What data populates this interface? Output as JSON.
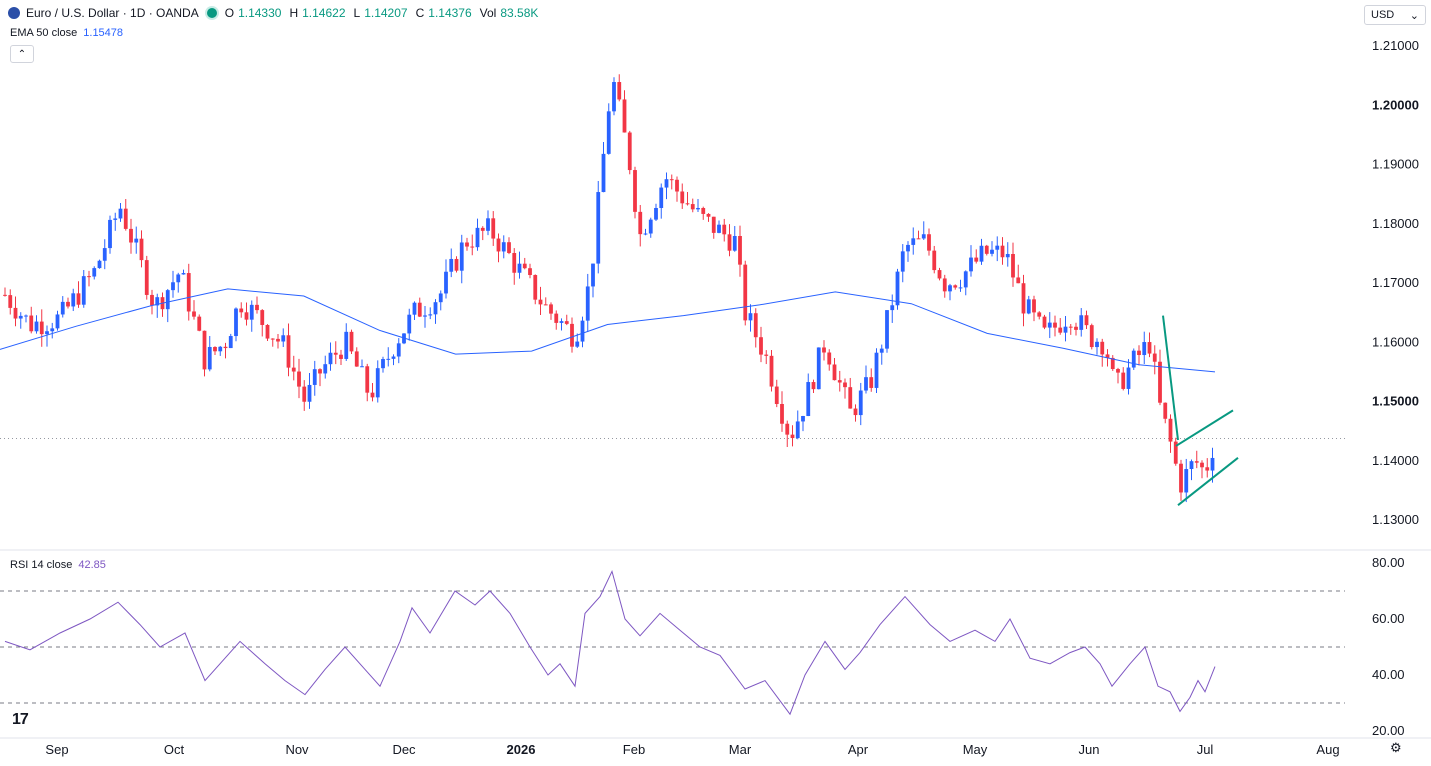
{
  "header": {
    "symbol": "Euro / U.S. Dollar · 1D · OANDA",
    "open_label": "O",
    "open": "1.14330",
    "high_label": "H",
    "high": "1.14622",
    "low_label": "L",
    "low": "1.14207",
    "close_label": "C",
    "close": "1.14376",
    "vol_label": "Vol",
    "vol": "83.58K"
  },
  "ema_legend": {
    "label": "EMA 50 close",
    "value": "1.15478"
  },
  "rsi_legend": {
    "label": "RSI 14 close",
    "value": "42.85"
  },
  "currency": {
    "label": "USD",
    "icon": "chevron-down-icon"
  },
  "colors": {
    "up": "#2962ff",
    "down": "#f23645",
    "ema": "#2962ff",
    "rsi": "#7e57c2",
    "pattern": "#089981"
  },
  "chart_data": [
    {
      "type": "candlestick",
      "title": "Euro / U.S. Dollar · 1D · OANDA",
      "ylim": [
        1.126,
        1.215
      ],
      "yticks": [
        "1.21000",
        "1.20000",
        "1.19000",
        "1.18000",
        "1.17000",
        "1.16000",
        "1.15000",
        "1.14000",
        "1.13000"
      ],
      "xticks": [
        "Sep",
        "Oct",
        "Nov",
        "Dec",
        "2026",
        "Feb",
        "Mar",
        "Apr",
        "May",
        "Jun",
        "Jul",
        "Aug"
      ],
      "last_price": 1.14376,
      "ema50_last": 1.15478,
      "overlay": "bear flag: sharp drop followed by upward-sloping parallel channel",
      "series": [
        {
          "name": "EMA 50 close",
          "values": [
            1.1588,
            1.1627,
            1.1662,
            1.169,
            1.1678,
            1.162,
            1.158,
            1.1585,
            1.163,
            1.1645,
            1.1663,
            1.1685,
            1.1665,
            1.1615,
            1.159,
            1.1562,
            1.155
          ]
        }
      ]
    },
    {
      "type": "line",
      "title": "RSI 14 close",
      "ylim": [
        20,
        80
      ],
      "yticks": [
        "80.00",
        "60.00",
        "40.00",
        "20.00"
      ],
      "levels": [
        70,
        50,
        30
      ],
      "last_value": 42.85
    }
  ]
}
